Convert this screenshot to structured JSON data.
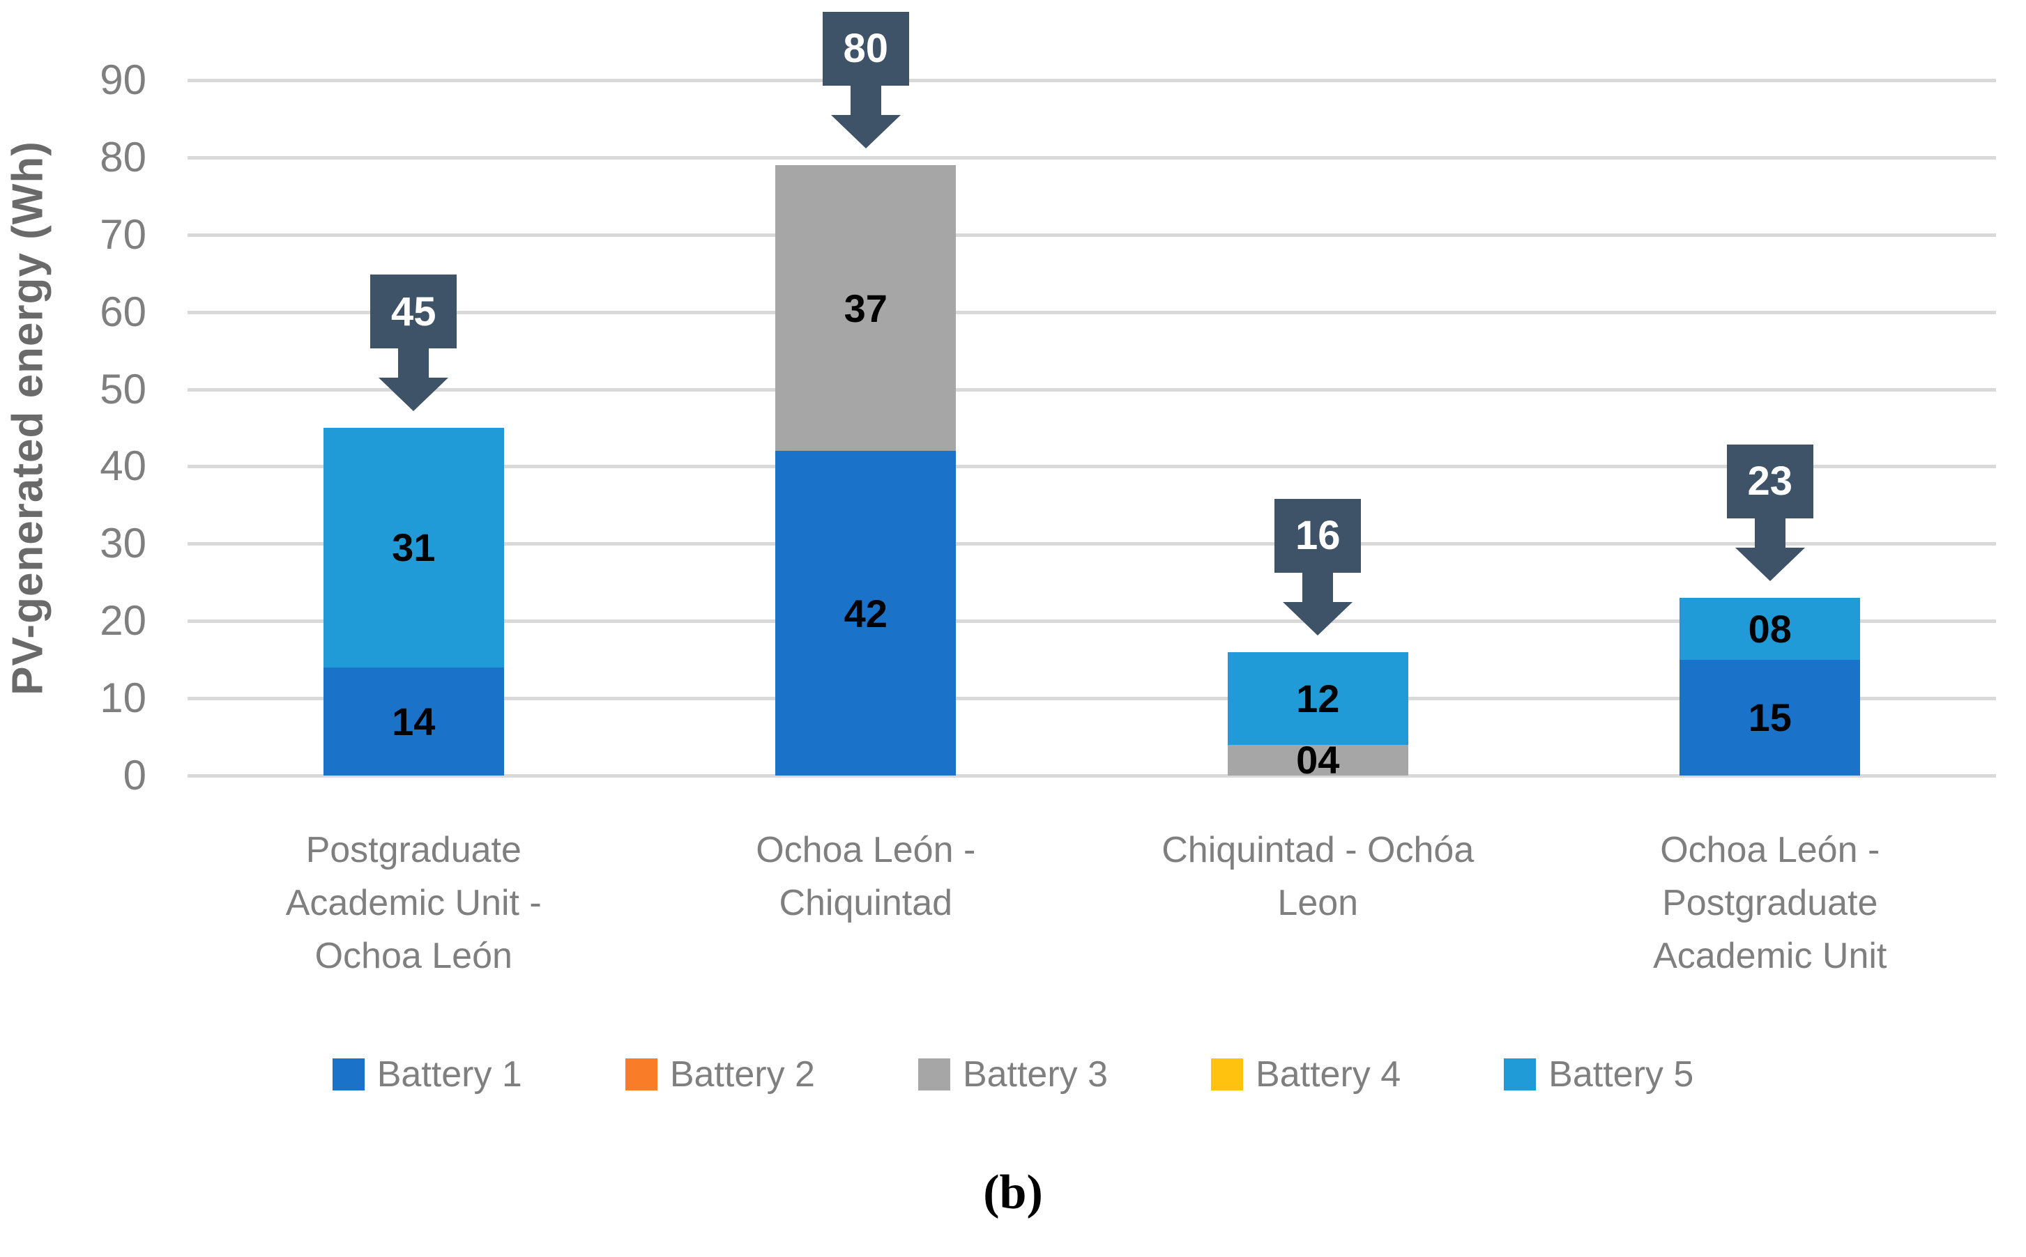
{
  "figure": {
    "caption": "(b)"
  },
  "chart_data": {
    "type": "bar",
    "stacked": true,
    "title": "",
    "xlabel": "",
    "ylabel": "PV-generated energy (Wh)",
    "ylim": [
      0,
      90
    ],
    "ytick_step": 10,
    "ytick_labels": [
      "0",
      "10",
      "20",
      "30",
      "40",
      "50",
      "60",
      "70",
      "80",
      "90"
    ],
    "grid": "horizontal",
    "legend_position": "bottom",
    "categories": [
      "Postgraduate Academic Unit - Ochoa León",
      "Ochoa León - Chiquintad",
      "Chiquintad - Ochóa Leon",
      "Ochoa León - Postgraduate Academic Unit"
    ],
    "xtick_lines": [
      [
        "Postgraduate",
        "Academic Unit -",
        "Ochoa León"
      ],
      [
        "Ochoa León -",
        "Chiquintad"
      ],
      [
        "Chiquintad - Ochóa",
        "Leon"
      ],
      [
        "Ochoa León -",
        "Postgraduate",
        "Academic Unit"
      ]
    ],
    "series": [
      {
        "name": "Battery 1",
        "color": "#1A73C8",
        "values": [
          14,
          42,
          0,
          15
        ],
        "labels": [
          "14",
          "42",
          "",
          "15"
        ]
      },
      {
        "name": "Battery 2",
        "color": "#F97D28",
        "values": [
          0,
          0,
          0,
          0
        ],
        "labels": [
          "",
          "",
          "",
          ""
        ]
      },
      {
        "name": "Battery 3",
        "color": "#A6A6A6",
        "values": [
          0,
          37,
          4,
          0
        ],
        "labels": [
          "",
          "37",
          "04",
          ""
        ]
      },
      {
        "name": "Battery 4",
        "color": "#FFC20E",
        "values": [
          0,
          0,
          0,
          0
        ],
        "labels": [
          "",
          "",
          "",
          ""
        ]
      },
      {
        "name": "Battery 5",
        "color": "#209BD7",
        "values": [
          31,
          0,
          12,
          8
        ],
        "labels": [
          "31",
          "",
          "12",
          "08"
        ]
      }
    ],
    "totals": {
      "labels": [
        "45",
        "80",
        "16",
        "23"
      ],
      "values": [
        45,
        80,
        16,
        23
      ],
      "callout_color": "#3F5368"
    },
    "colors": {
      "gridline": "#D9D9D9",
      "axis_text": "#7F7F7F",
      "axis_title": "#6A6A6A",
      "data_label": "#000000",
      "callout_text": "#FFFFFF"
    }
  }
}
